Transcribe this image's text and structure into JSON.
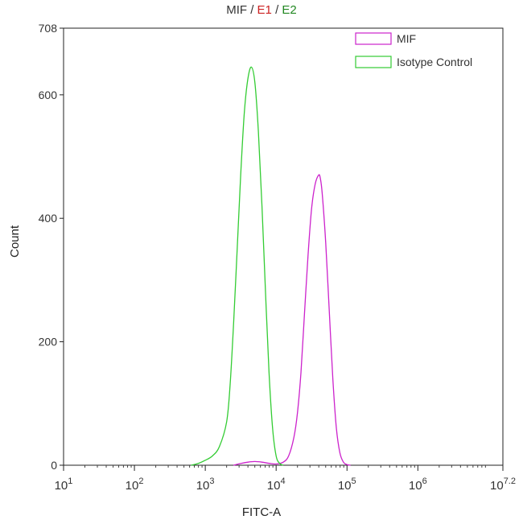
{
  "chart_data": {
    "type": "line",
    "title_parts": [
      {
        "text": "MIF",
        "color": "#333333"
      },
      {
        "text": " / ",
        "color": "#333333"
      },
      {
        "text": "E1",
        "color": "#cc2222"
      },
      {
        "text": " / ",
        "color": "#333333"
      },
      {
        "text": "E2",
        "color": "#228822"
      }
    ],
    "xlabel": "FITC-A",
    "ylabel": "Count",
    "x_scale": "log10",
    "xlim": [
      10,
      15848931.9
    ],
    "ylim": [
      0,
      708
    ],
    "x_ticks": [
      {
        "base": "10",
        "exp": "1",
        "value": 10
      },
      {
        "base": "10",
        "exp": "2",
        "value": 100
      },
      {
        "base": "10",
        "exp": "3",
        "value": 1000
      },
      {
        "base": "10",
        "exp": "4",
        "value": 10000
      },
      {
        "base": "10",
        "exp": "5",
        "value": 100000
      },
      {
        "base": "10",
        "exp": "6",
        "value": 1000000
      },
      {
        "base": "10",
        "exp": "7.2",
        "value": 15848931.9
      }
    ],
    "y_ticks": [
      0,
      200,
      400,
      600,
      708
    ],
    "legend_position": "top-right",
    "grid": false,
    "series": [
      {
        "name": "MIF",
        "color": "#cc22cc",
        "x": [
          2500,
          3200,
          4000,
          5000,
          6300,
          8000,
          10000,
          12600,
          15000,
          17800,
          20000,
          22400,
          25100,
          28200,
          31600,
          35500,
          39800,
          42000,
          44700,
          50100,
          56200,
          63100,
          70800,
          79400,
          89100,
          100000,
          112200
        ],
        "y": [
          0,
          3,
          5,
          6,
          5,
          3,
          2,
          5,
          15,
          45,
          85,
          150,
          245,
          340,
          415,
          455,
          470,
          465,
          440,
          360,
          250,
          140,
          60,
          20,
          5,
          1,
          0
        ]
      },
      {
        "name": "Isotype Control",
        "color": "#33cc33",
        "x": [
          630,
          800,
          1000,
          1260,
          1580,
          2000,
          2240,
          2510,
          2820,
          3160,
          3550,
          3980,
          4470,
          5010,
          5620,
          6310,
          7080,
          7940,
          8910,
          10000,
          11220,
          12590
        ],
        "y": [
          0,
          3,
          8,
          15,
          30,
          70,
          130,
          230,
          350,
          470,
          570,
          625,
          645,
          620,
          540,
          420,
          280,
          150,
          60,
          15,
          3,
          0
        ]
      }
    ]
  }
}
